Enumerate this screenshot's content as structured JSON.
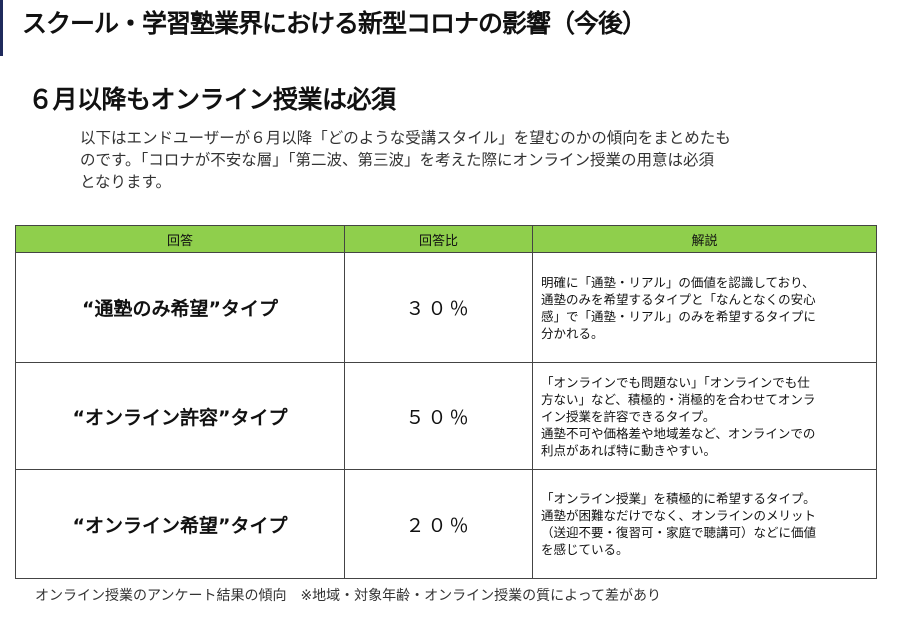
{
  "title": "スクール・学習塾業界における新型コロナの影響（今後）",
  "subtitle": "６月以降もオンライン授業は必須",
  "intro": [
    "以下はエンドユーザーが６月以降「どのような受講スタイル」を望むのかの傾向をまとめたも",
    "のです。「コロナが不安な層」「第二波、第三波」を考えた際にオンライン授業の用意は必須",
    "となります。"
  ],
  "table": {
    "headers": [
      "回答",
      "回答比",
      "解説"
    ],
    "rows": [
      {
        "type": "“通塾のみ希望”タイプ",
        "pct": "３０％",
        "exp": [
          "明確に「通塾・リアル」の価値を認識しており、",
          "通塾のみを希望するタイプと「なんとなくの安心",
          "感」で「通塾・リアル」のみを希望するタイプに",
          "分かれる。"
        ]
      },
      {
        "type": "“オンライン許容”タイプ",
        "pct": "５０％",
        "exp": [
          "「オンラインでも問題ない」「オンラインでも仕",
          "方ない」など、積極的・消極的を合わせてオンラ",
          "イン授業を許容できるタイプ。",
          "通塾不可や価格差や地域差など、オンラインでの",
          "利点があれば特に動きやすい。"
        ]
      },
      {
        "type": "“オンライン希望”タイプ",
        "pct": "２０％",
        "exp": [
          "「オンライン授業」を積極的に希望するタイプ。",
          "通塾が困難なだけでなく、オンラインのメリット",
          "（送迎不要・復習可・家庭で聴講可）などに価値",
          "を感じている。"
        ]
      }
    ]
  },
  "footer": "オンライン授業のアンケート結果の傾向　※地域・対象年齢・オンライン授業の質によって差があり"
}
